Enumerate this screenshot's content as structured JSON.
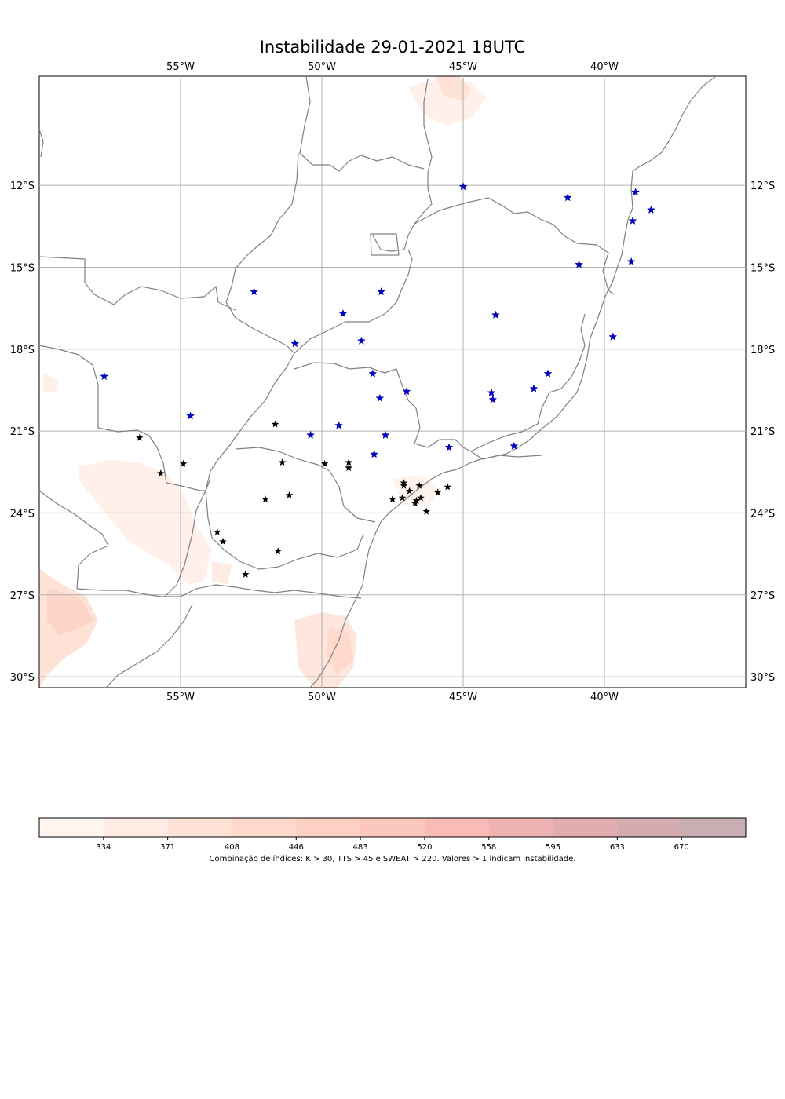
{
  "title": "Instabilidade 29-01-2021 18UTC",
  "map": {
    "lon_range": [
      -60,
      -35
    ],
    "lat_range": [
      -30.4,
      -8.0
    ],
    "lon_ticks": [
      {
        "value": -55,
        "label": "55°W"
      },
      {
        "value": -50,
        "label": "50°W"
      },
      {
        "value": -45,
        "label": "45°W"
      },
      {
        "value": -40,
        "label": "40°W"
      }
    ],
    "lat_ticks": [
      {
        "value": -12,
        "label": "12°S"
      },
      {
        "value": -15,
        "label": "15°S"
      },
      {
        "value": -18,
        "label": "18°S"
      },
      {
        "value": -21,
        "label": "21°S"
      },
      {
        "value": -24,
        "label": "24°S"
      },
      {
        "value": -27,
        "label": "27°S"
      },
      {
        "value": -30,
        "label": "30°S"
      }
    ],
    "grid": true,
    "border_color": "#808080",
    "stations_blue": [
      {
        "lon": -45.0,
        "lat": -12.05
      },
      {
        "lon": -41.3,
        "lat": -12.45
      },
      {
        "lon": -38.9,
        "lat": -12.25
      },
      {
        "lon": -39.0,
        "lat": -13.3
      },
      {
        "lon": -38.35,
        "lat": -12.9
      },
      {
        "lon": -40.9,
        "lat": -14.9
      },
      {
        "lon": -39.05,
        "lat": -14.8
      },
      {
        "lon": -52.4,
        "lat": -15.9
      },
      {
        "lon": -47.9,
        "lat": -15.9
      },
      {
        "lon": -49.25,
        "lat": -16.7
      },
      {
        "lon": -43.85,
        "lat": -16.75
      },
      {
        "lon": -50.95,
        "lat": -17.8
      },
      {
        "lon": -48.6,
        "lat": -17.7
      },
      {
        "lon": -39.7,
        "lat": -17.55
      },
      {
        "lon": -57.7,
        "lat": -19.0
      },
      {
        "lon": -48.2,
        "lat": -18.9
      },
      {
        "lon": -42.0,
        "lat": -18.9
      },
      {
        "lon": -47.0,
        "lat": -19.55
      },
      {
        "lon": -44.0,
        "lat": -19.6
      },
      {
        "lon": -42.5,
        "lat": -19.45
      },
      {
        "lon": -47.95,
        "lat": -19.8
      },
      {
        "lon": -43.95,
        "lat": -19.85
      },
      {
        "lon": -54.65,
        "lat": -20.45
      },
      {
        "lon": -49.4,
        "lat": -20.8
      },
      {
        "lon": -50.4,
        "lat": -21.15
      },
      {
        "lon": -47.75,
        "lat": -21.15
      },
      {
        "lon": -45.5,
        "lat": -21.6
      },
      {
        "lon": -43.2,
        "lat": -21.55
      },
      {
        "lon": -48.15,
        "lat": -21.85
      }
    ],
    "stations_black": [
      {
        "lon": -56.45,
        "lat": -21.25
      },
      {
        "lon": -51.65,
        "lat": -20.75
      },
      {
        "lon": -54.9,
        "lat": -22.2
      },
      {
        "lon": -55.7,
        "lat": -22.55
      },
      {
        "lon": -51.4,
        "lat": -22.15
      },
      {
        "lon": -49.9,
        "lat": -22.2
      },
      {
        "lon": -49.05,
        "lat": -22.15
      },
      {
        "lon": -49.05,
        "lat": -22.35
      },
      {
        "lon": -47.1,
        "lat": -22.9
      },
      {
        "lon": -47.1,
        "lat": -23.0
      },
      {
        "lon": -46.55,
        "lat": -23.0
      },
      {
        "lon": -45.55,
        "lat": -23.05
      },
      {
        "lon": -46.9,
        "lat": -23.2
      },
      {
        "lon": -45.9,
        "lat": -23.25
      },
      {
        "lon": -52.0,
        "lat": -23.5
      },
      {
        "lon": -51.15,
        "lat": -23.35
      },
      {
        "lon": -47.5,
        "lat": -23.5
      },
      {
        "lon": -47.15,
        "lat": -23.45
      },
      {
        "lon": -46.5,
        "lat": -23.45
      },
      {
        "lon": -46.65,
        "lat": -23.55
      },
      {
        "lon": -46.7,
        "lat": -23.65
      },
      {
        "lon": -46.3,
        "lat": -23.95
      },
      {
        "lon": -53.7,
        "lat": -24.7
      },
      {
        "lon": -53.5,
        "lat": -25.05
      },
      {
        "lon": -51.55,
        "lat": -25.4
      },
      {
        "lon": -52.7,
        "lat": -26.25
      }
    ]
  },
  "colorbar": {
    "ticks": [
      "334",
      "371",
      "408",
      "446",
      "483",
      "520",
      "558",
      "595",
      "633",
      "670"
    ],
    "colors": [
      "#fff5f0",
      "#ffebe3",
      "#fee2d6",
      "#fed9cc",
      "#fdd0c4",
      "#fcc7bd",
      "#f9bbb6",
      "#efb2b2",
      "#e2adb0",
      "#d4acb0",
      "#c8aeb3"
    ],
    "caption": "Combinação de índices: K > 30, TTS > 45 e SWEAT > 220. Valores > 1 indicam instabilidade."
  }
}
